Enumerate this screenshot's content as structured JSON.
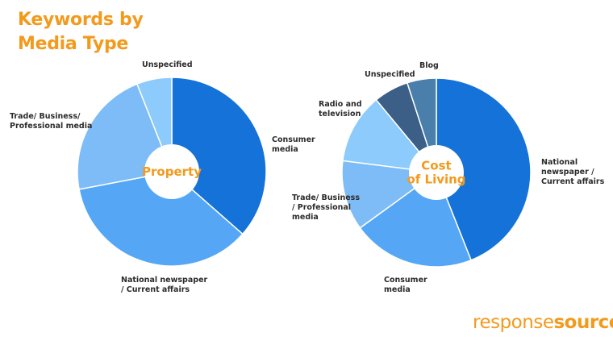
{
  "title": {
    "line1": "Keywords by",
    "line2": "Media Type"
  },
  "brand": {
    "part1": "response",
    "part2": "source"
  },
  "colors": {
    "accent": "#f39a1c"
  },
  "chart_data": [
    {
      "type": "pie",
      "center_label": [
        "Property"
      ],
      "slices": [
        {
          "label": [
            "Consumer",
            "media"
          ],
          "value": 36.5,
          "color": "#1472d8"
        },
        {
          "label": [
            "National newspaper",
            "/ Current affairs"
          ],
          "value": 35.5,
          "color": "#55a7f5"
        },
        {
          "label": [
            "Trade/ Business/",
            "Professional media"
          ],
          "value": 22.0,
          "color": "#7ebcf7"
        },
        {
          "label": [
            "Unspecified"
          ],
          "value": 6.0,
          "color": "#8ccbfb"
        }
      ]
    },
    {
      "type": "pie",
      "center_label": [
        "Cost",
        "of Living"
      ],
      "slices": [
        {
          "label": [
            "National",
            "newspaper /",
            "Current affairs"
          ],
          "value": 44.0,
          "color": "#1472d8"
        },
        {
          "label": [
            "Consumer",
            "media"
          ],
          "value": 21.0,
          "color": "#55a7f5"
        },
        {
          "label": [
            "Trade/ Business",
            "/ Professional",
            "media"
          ],
          "value": 12.0,
          "color": "#7ebcf7"
        },
        {
          "label": [
            "Radio and",
            "television"
          ],
          "value": 12.0,
          "color": "#8ccbfb"
        },
        {
          "label": [
            "Unspecified"
          ],
          "value": 6.0,
          "color": "#3b5f86"
        },
        {
          "label": [
            "Blog"
          ],
          "value": 5.0,
          "color": "#4b7fab"
        }
      ]
    }
  ]
}
